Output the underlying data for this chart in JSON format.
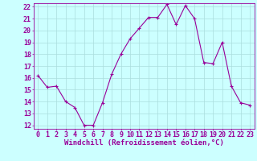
{
  "x": [
    0,
    1,
    2,
    3,
    4,
    5,
    6,
    7,
    8,
    9,
    10,
    11,
    12,
    13,
    14,
    15,
    16,
    17,
    18,
    19,
    20,
    21,
    22,
    23
  ],
  "y": [
    16.2,
    15.2,
    15.3,
    14.0,
    13.5,
    12.0,
    12.0,
    13.9,
    16.3,
    18.0,
    19.3,
    20.2,
    21.1,
    21.1,
    22.2,
    20.5,
    22.1,
    21.0,
    17.3,
    17.2,
    19.0,
    15.3,
    13.9,
    13.7
  ],
  "line_color": "#990099",
  "marker": "+",
  "marker_size": 3,
  "bg_color": "#ccffff",
  "grid_color": "#aadddd",
  "xlabel": "Windchill (Refroidissement éolien,°C)",
  "xlabel_fontsize": 6.5,
  "tick_fontsize": 6,
  "xlim_min": -0.5,
  "xlim_max": 23.5,
  "ylim_min": 11.7,
  "ylim_max": 22.3,
  "yticks": [
    12,
    13,
    14,
    15,
    16,
    17,
    18,
    19,
    20,
    21,
    22
  ],
  "xticks": [
    0,
    1,
    2,
    3,
    4,
    5,
    6,
    7,
    8,
    9,
    10,
    11,
    12,
    13,
    14,
    15,
    16,
    17,
    18,
    19,
    20,
    21,
    22,
    23
  ]
}
